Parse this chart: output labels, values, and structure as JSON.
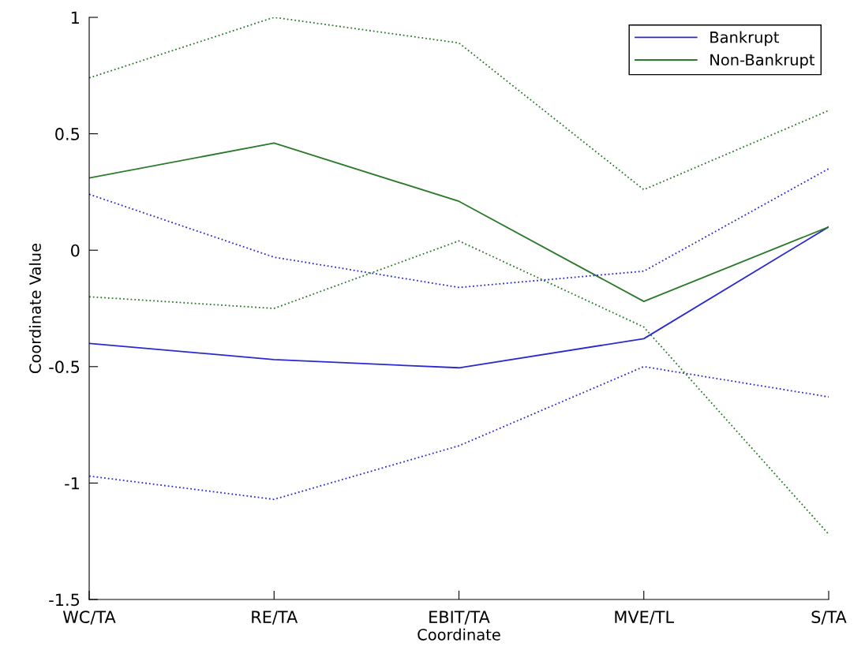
{
  "chart_data": {
    "type": "line",
    "xlabel": "Coordinate",
    "ylabel": "Coordinate Value",
    "categories": [
      "WC/TA",
      "RE/TA",
      "EBIT/TA",
      "MVE/TL",
      "S/TA"
    ],
    "ylim": [
      -1.5,
      1
    ],
    "yticks": [
      -1.5,
      -1,
      -0.5,
      0,
      0.5,
      1
    ],
    "grid": false,
    "legend": "top right",
    "series": [
      {
        "name": "Bankrupt",
        "color": "#2a2ad0",
        "values": [
          -0.4,
          -0.47,
          -0.505,
          -0.38,
          0.1
        ],
        "line_style": "solid"
      },
      {
        "name": "Non-Bankrupt",
        "color": "#2a7a2a",
        "values": [
          0.31,
          0.46,
          0.21,
          -0.22,
          0.1
        ],
        "line_style": "solid"
      },
      {
        "color": "#2a2ad0",
        "values": [
          0.24,
          -0.03,
          -0.16,
          -0.09,
          0.35
        ],
        "line_style": "dotted"
      },
      {
        "color": "#2a2ad0",
        "values": [
          -0.97,
          -1.07,
          -0.84,
          -0.5,
          -0.63
        ],
        "line_style": "dotted"
      },
      {
        "color": "#2a7a2a",
        "values": [
          0.74,
          1.0,
          0.89,
          0.26,
          0.6
        ],
        "line_style": "dotted"
      },
      {
        "color": "#2a7a2a",
        "values": [
          -0.2,
          -0.25,
          0.04,
          -0.33,
          -1.22
        ],
        "line_style": "dotted"
      }
    ]
  }
}
